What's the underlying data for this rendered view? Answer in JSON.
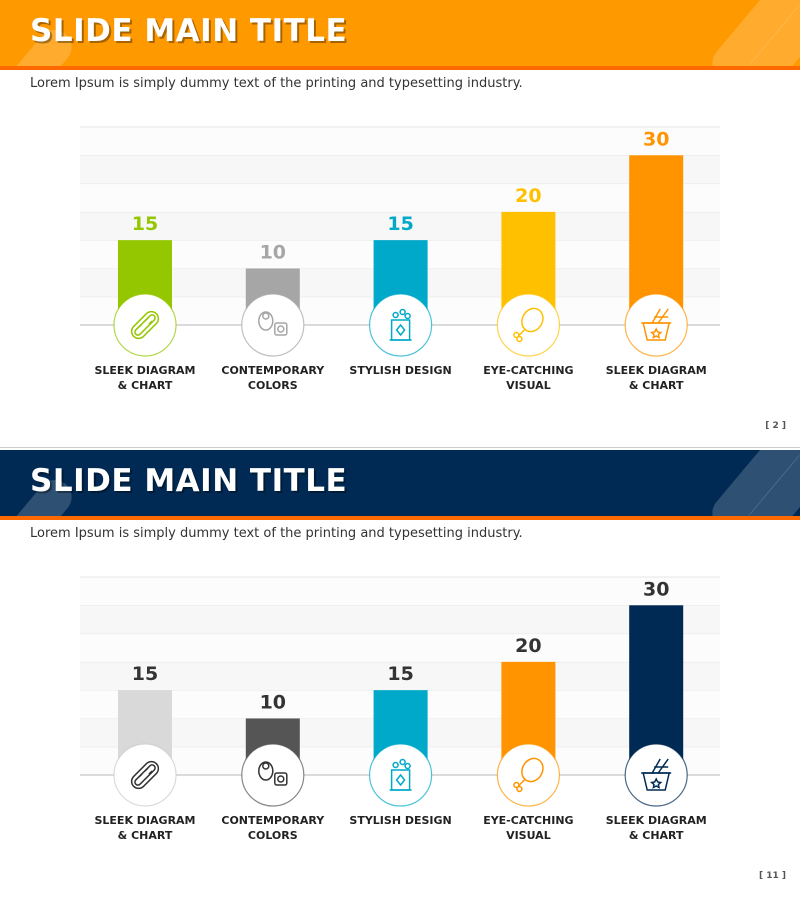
{
  "slides": [
    {
      "title": "SLIDE MAIN TITLE",
      "subtitle": "Lorem Ipsum is simply dummy text of the printing and typesetting industry.",
      "page_number": "[ 2 ]",
      "header_color": "#ff9900",
      "chart_data": {
        "type": "bar",
        "categories": [
          "SLEEK DIAGRAM\n& CHART",
          "CONTEMPORARY\nCOLORS",
          "STYLISH DESIGN",
          "EYE-CATCHING\nVISUAL",
          "SLEEK DIAGRAM\n& CHART"
        ],
        "values": [
          15,
          10,
          15,
          20,
          30
        ],
        "ylim": [
          0,
          35
        ],
        "grid": true,
        "colors": [
          "#94c700",
          "#a6a6a6",
          "#00a9c9",
          "#ffc000",
          "#ff9400"
        ],
        "label_colors": [
          "#94c700",
          "#a6a6a6",
          "#00a9c9",
          "#ffc000",
          "#ff9400"
        ],
        "icons": [
          "hotdog-icon",
          "sushi-icon",
          "popcorn-icon",
          "chicken-leg-icon",
          "noodle-box-icon"
        ]
      }
    },
    {
      "title": "SLIDE MAIN TITLE",
      "subtitle": "Lorem Ipsum is simply dummy text of the printing and typesetting industry.",
      "page_number": "[ 11 ]",
      "header_color": "#002a54",
      "chart_data": {
        "type": "bar",
        "categories": [
          "SLEEK DIAGRAM\n& CHART",
          "CONTEMPORARY\nCOLORS",
          "STYLISH DESIGN",
          "EYE-CATCHING\nVISUAL",
          "SLEEK DIAGRAM\n& CHART"
        ],
        "values": [
          15,
          10,
          15,
          20,
          30
        ],
        "ylim": [
          0,
          35
        ],
        "grid": true,
        "colors": [
          "#d9d9d9",
          "#555555",
          "#00a9c9",
          "#ff9400",
          "#002a54"
        ],
        "label_colors": [
          "#333333",
          "#333333",
          "#333333",
          "#333333",
          "#333333"
        ],
        "icons": [
          "hotdog-icon",
          "sushi-icon",
          "popcorn-icon",
          "chicken-leg-icon",
          "noodle-box-icon"
        ]
      }
    }
  ]
}
